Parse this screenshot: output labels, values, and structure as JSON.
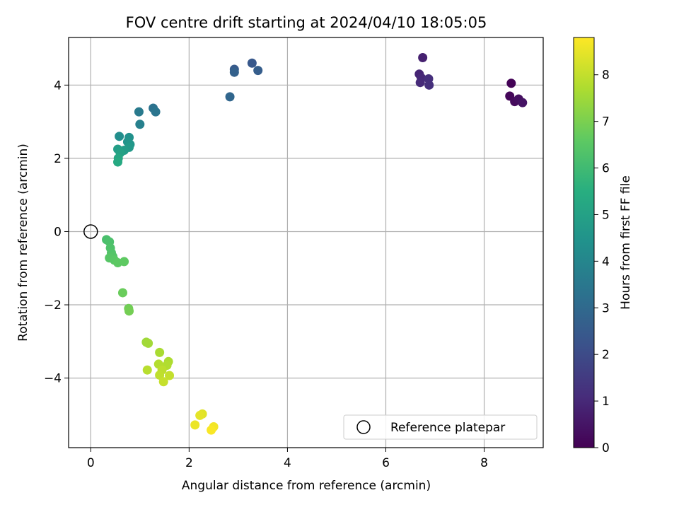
{
  "chart_data": {
    "type": "scatter",
    "title": "FOV centre drift starting at 2024/04/10 18:05:05",
    "xlabel": "Angular distance from reference (arcmin)",
    "ylabel": "Rotation from reference (arcmin)",
    "xlim": [
      -0.45,
      9.2
    ],
    "ylim": [
      -5.9,
      5.3
    ],
    "xticks": [
      "0",
      "2",
      "4",
      "6",
      "8"
    ],
    "xtick_values": [
      0,
      2,
      4,
      6,
      8
    ],
    "yticks": [
      "−4",
      "−2",
      "0",
      "2",
      "4"
    ],
    "ytick_values": [
      -4,
      -2,
      0,
      2,
      4
    ],
    "grid": true,
    "colormap": "viridis",
    "colorbar": {
      "label": "Hours from first FF file",
      "range": [
        0,
        8.8
      ],
      "ticks": [
        "0",
        "1",
        "2",
        "3",
        "4",
        "5",
        "6",
        "7",
        "8"
      ],
      "tick_values": [
        0,
        1,
        2,
        3,
        4,
        5,
        6,
        7,
        8
      ]
    },
    "legend": {
      "placement": "lower-right",
      "entries": [
        "Reference platepar"
      ]
    },
    "reference_point": {
      "x": 0,
      "y": 0
    },
    "points": [
      {
        "x": 8.55,
        "y": 4.05,
        "hours": 0.05
      },
      {
        "x": 8.52,
        "y": 3.7,
        "hours": 0.15
      },
      {
        "x": 8.62,
        "y": 3.55,
        "hours": 0.25
      },
      {
        "x": 8.7,
        "y": 3.62,
        "hours": 0.35
      },
      {
        "x": 8.78,
        "y": 3.52,
        "hours": 0.45
      },
      {
        "x": 6.75,
        "y": 4.75,
        "hours": 0.8
      },
      {
        "x": 6.68,
        "y": 4.3,
        "hours": 0.9
      },
      {
        "x": 6.72,
        "y": 4.2,
        "hours": 1.0
      },
      {
        "x": 6.7,
        "y": 4.07,
        "hours": 1.05
      },
      {
        "x": 6.87,
        "y": 4.17,
        "hours": 1.15
      },
      {
        "x": 6.88,
        "y": 4.0,
        "hours": 1.2
      },
      {
        "x": 3.28,
        "y": 4.6,
        "hours": 2.4
      },
      {
        "x": 2.92,
        "y": 4.43,
        "hours": 2.5
      },
      {
        "x": 3.4,
        "y": 4.4,
        "hours": 2.6
      },
      {
        "x": 2.92,
        "y": 4.35,
        "hours": 2.7
      },
      {
        "x": 2.83,
        "y": 3.68,
        "hours": 2.9
      },
      {
        "x": 1.27,
        "y": 3.37,
        "hours": 3.3
      },
      {
        "x": 1.32,
        "y": 3.27,
        "hours": 3.4
      },
      {
        "x": 0.98,
        "y": 3.27,
        "hours": 3.6
      },
      {
        "x": 1.0,
        "y": 2.93,
        "hours": 3.8
      },
      {
        "x": 0.58,
        "y": 2.6,
        "hours": 4.3
      },
      {
        "x": 0.78,
        "y": 2.57,
        "hours": 4.4
      },
      {
        "x": 0.75,
        "y": 2.45,
        "hours": 4.5
      },
      {
        "x": 0.8,
        "y": 2.38,
        "hours": 4.6
      },
      {
        "x": 0.78,
        "y": 2.3,
        "hours": 4.7
      },
      {
        "x": 0.68,
        "y": 2.22,
        "hours": 4.8
      },
      {
        "x": 0.55,
        "y": 2.25,
        "hours": 4.9
      },
      {
        "x": 0.6,
        "y": 2.15,
        "hours": 5.0
      },
      {
        "x": 0.56,
        "y": 2.0,
        "hours": 5.2
      },
      {
        "x": 0.55,
        "y": 1.9,
        "hours": 5.3
      },
      {
        "x": 0.32,
        "y": -0.22,
        "hours": 6.2
      },
      {
        "x": 0.38,
        "y": -0.28,
        "hours": 6.25
      },
      {
        "x": 0.4,
        "y": -0.45,
        "hours": 6.3
      },
      {
        "x": 0.42,
        "y": -0.58,
        "hours": 6.35
      },
      {
        "x": 0.45,
        "y": -0.68,
        "hours": 6.4
      },
      {
        "x": 0.38,
        "y": -0.72,
        "hours": 6.45
      },
      {
        "x": 0.48,
        "y": -0.78,
        "hours": 6.5
      },
      {
        "x": 0.55,
        "y": -0.85,
        "hours": 6.55
      },
      {
        "x": 0.68,
        "y": -0.82,
        "hours": 6.6
      },
      {
        "x": 0.65,
        "y": -1.67,
        "hours": 6.75
      },
      {
        "x": 0.77,
        "y": -2.1,
        "hours": 6.85
      },
      {
        "x": 0.78,
        "y": -2.17,
        "hours": 6.9
      },
      {
        "x": 1.13,
        "y": -3.02,
        "hours": 7.5
      },
      {
        "x": 1.17,
        "y": -3.05,
        "hours": 7.55
      },
      {
        "x": 1.4,
        "y": -3.3,
        "hours": 7.65
      },
      {
        "x": 1.58,
        "y": -3.55,
        "hours": 7.7
      },
      {
        "x": 1.55,
        "y": -3.65,
        "hours": 7.75
      },
      {
        "x": 1.38,
        "y": -3.62,
        "hours": 7.8
      },
      {
        "x": 1.15,
        "y": -3.78,
        "hours": 7.85
      },
      {
        "x": 1.45,
        "y": -3.78,
        "hours": 7.9
      },
      {
        "x": 1.4,
        "y": -3.92,
        "hours": 7.95
      },
      {
        "x": 1.6,
        "y": -3.93,
        "hours": 8.0
      },
      {
        "x": 1.48,
        "y": -4.1,
        "hours": 8.05
      },
      {
        "x": 2.27,
        "y": -4.98,
        "hours": 8.4
      },
      {
        "x": 2.22,
        "y": -5.02,
        "hours": 8.45
      },
      {
        "x": 2.12,
        "y": -5.28,
        "hours": 8.55
      },
      {
        "x": 2.5,
        "y": -5.33,
        "hours": 8.65
      },
      {
        "x": 2.45,
        "y": -5.42,
        "hours": 8.75
      }
    ]
  }
}
